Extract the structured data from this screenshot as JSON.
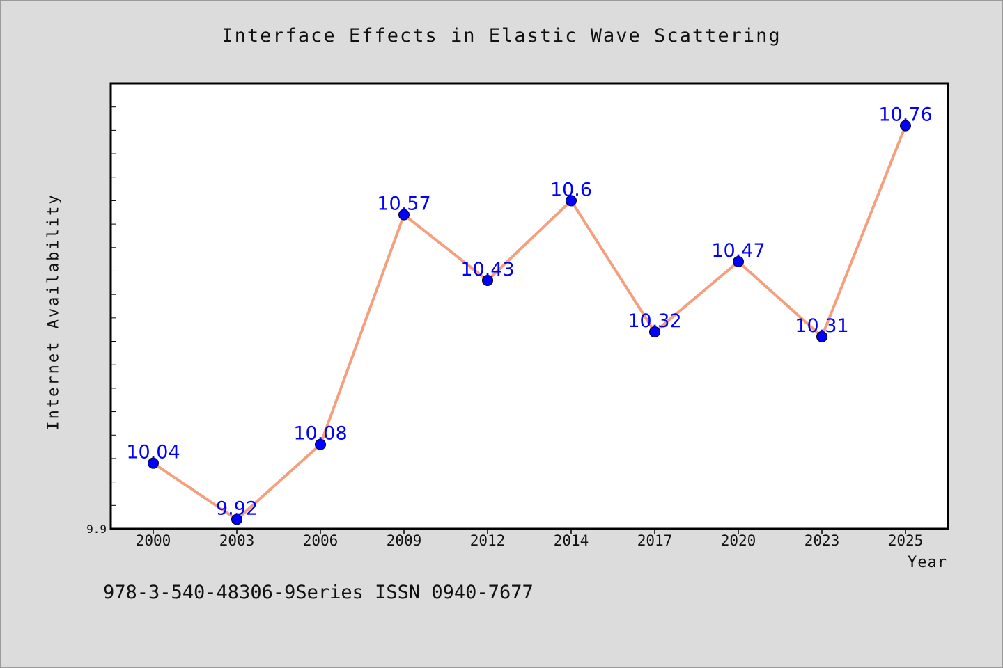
{
  "chart_data": {
    "type": "line",
    "title": "Interface Effects in Elastic Wave Scattering",
    "xlabel": "Year",
    "ylabel": "Internet Availability",
    "categories": [
      "2000",
      "2003",
      "2006",
      "2009",
      "2012",
      "2014",
      "2017",
      "2020",
      "2023",
      "2025"
    ],
    "values": [
      10.04,
      9.92,
      10.08,
      10.57,
      10.43,
      10.6,
      10.32,
      10.47,
      10.31,
      10.76
    ],
    "data_labels": [
      "10.04",
      "9.92",
      "10.08",
      "10.57",
      "10.43",
      "10.6",
      "10.32",
      "10.47",
      "10.31",
      "10.76"
    ],
    "ylim": [
      9.9,
      10.85
    ],
    "y_tick_labels": [
      "9.9"
    ],
    "grid": false,
    "legend": "none",
    "colors": {
      "line": "#f4a07e",
      "marker": "#0000ff",
      "label": "#0000ff",
      "plot_bg": "#ffffff",
      "page_bg": "#dcdcdc"
    }
  },
  "footer": {
    "text": "978-3-540-48306-9Series ISSN 0940-7677"
  }
}
